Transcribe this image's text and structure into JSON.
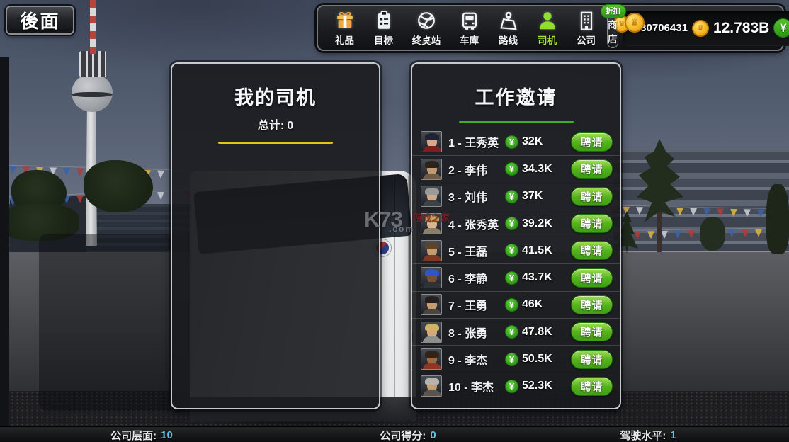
{
  "back_button": {
    "label": "後面"
  },
  "toolbar": {
    "tabs": [
      {
        "label": "礼品",
        "icon": "gift-icon",
        "active": false
      },
      {
        "label": "目标",
        "icon": "clipboard-icon",
        "active": false
      },
      {
        "label": "终奌站",
        "icon": "globe-icon",
        "active": false
      },
      {
        "label": "车库",
        "icon": "bus-icon",
        "active": false
      },
      {
        "label": "路线",
        "icon": "map-pin-icon",
        "active": false
      },
      {
        "label": "司机",
        "icon": "driver-icon",
        "active": true
      },
      {
        "label": "公司",
        "icon": "building-icon",
        "active": false
      }
    ],
    "shop": {
      "label": "商店",
      "badge": "折扣",
      "icon": "coins-icon"
    },
    "currency": {
      "coins": "2130706431",
      "coin_icon": "gold-coin-icon",
      "money": "12.783B",
      "money_symbol": "¥"
    }
  },
  "my_drivers_panel": {
    "title": "我的司机",
    "total_label": "总计:",
    "total_value": "0",
    "accent_color": "#e8c11c"
  },
  "invites_panel": {
    "title": "工作邀请",
    "accent_color": "#3faf1e",
    "hire_label": "聘请",
    "currency_symbol": "¥",
    "rows": [
      {
        "label": "1 - 王秀英",
        "price": "32K"
      },
      {
        "label": "2 - 李伟",
        "price": "34.3K"
      },
      {
        "label": "3 - 刘伟",
        "price": "37K"
      },
      {
        "label": "4 - 张秀英",
        "price": "39.2K"
      },
      {
        "label": "5 - 王磊",
        "price": "41.5K"
      },
      {
        "label": "6 - 李静",
        "price": "43.7K"
      },
      {
        "label": "7 - 王勇",
        "price": "46K"
      },
      {
        "label": "8 - 张勇",
        "price": "47.8K"
      },
      {
        "label": "9 - 李杰",
        "price": "50.5K"
      },
      {
        "label": "10 - 李杰",
        "price": "52.3K"
      }
    ]
  },
  "status_bar": {
    "items": [
      {
        "label": "公司层面:",
        "value": "10"
      },
      {
        "label": "公司得分:",
        "value": "0"
      },
      {
        "label": "驾驶水平:",
        "value": "1"
      }
    ],
    "value_color": "#5fc3e4"
  },
  "watermark": {
    "brand": "K73",
    "suffix": ".com",
    "tagline": "游戏之家"
  },
  "colors": {
    "hire_button_green": "#57b21f",
    "yen_badge_green": "#2f9418",
    "coin_gold": "#f6b41d",
    "active_tab_green": "#a9e52f",
    "discount_badge_green": "#3fae2a"
  }
}
